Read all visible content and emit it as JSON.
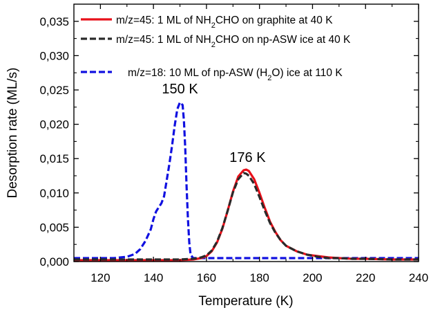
{
  "chart_data": {
    "type": "line",
    "xlabel": "Temperature (K)",
    "ylabel": "Desorption rate (ML/s)",
    "xlim": [
      110,
      240
    ],
    "ylim": [
      0,
      0.0375
    ],
    "xticks": [
      120,
      140,
      160,
      180,
      200,
      220,
      240
    ],
    "xtick_labels": [
      "120",
      "140",
      "160",
      "180",
      "200",
      "220",
      "240"
    ],
    "yticks": [
      0,
      0.005,
      0.01,
      0.015,
      0.02,
      0.025,
      0.03,
      0.035
    ],
    "ytick_labels": [
      "0,000",
      "0,005",
      "0,010",
      "0,015",
      "0,020",
      "0,025",
      "0,030",
      "0,035"
    ],
    "grid": false,
    "legend_position": "top",
    "series": [
      {
        "name_prefix": "m/z=45:  1 ML  of NH",
        "name_sub": "2",
        "name_suffix": "CHO on graphite at 40 K",
        "color": "#e8101a",
        "style": "solid",
        "x": [
          110,
          150,
          155,
          158,
          160,
          162,
          164,
          166,
          168,
          170,
          172,
          174,
          175,
          176,
          178,
          180,
          182,
          184,
          186,
          188,
          190,
          194,
          198,
          202,
          206,
          210,
          215,
          220,
          230,
          240
        ],
        "y": [
          0.0002,
          0.0002,
          0.0003,
          0.0005,
          0.0008,
          0.0015,
          0.0028,
          0.0048,
          0.0074,
          0.0102,
          0.0124,
          0.0133,
          0.0134,
          0.0132,
          0.012,
          0.01,
          0.0078,
          0.0058,
          0.0043,
          0.0031,
          0.0023,
          0.0015,
          0.001,
          0.0008,
          0.0006,
          0.0005,
          0.0004,
          0.0004,
          0.0003,
          0.0003
        ]
      },
      {
        "name_prefix": "m/z=45:  1 ML  of NH",
        "name_sub": "2",
        "name_suffix": "CHO on np-ASW ice at 40 K",
        "color": "#2a2a2a",
        "style": "dash",
        "x": [
          110,
          150,
          155,
          158,
          160,
          162,
          164,
          166,
          168,
          170,
          172,
          174,
          175,
          176,
          178,
          180,
          182,
          184,
          186,
          188,
          190,
          194,
          198,
          202,
          206,
          210,
          215,
          220,
          230,
          240
        ],
        "y": [
          0.0003,
          0.0003,
          0.0004,
          0.0006,
          0.0009,
          0.0016,
          0.0029,
          0.0049,
          0.0074,
          0.0101,
          0.012,
          0.0129,
          0.0128,
          0.0125,
          0.0113,
          0.0094,
          0.0074,
          0.0056,
          0.0042,
          0.0031,
          0.0023,
          0.0015,
          0.001,
          0.0007,
          0.0005,
          0.0005,
          0.0004,
          0.0004,
          0.0003,
          0.0003
        ]
      },
      {
        "name_prefix": "m/z=18:  10 ML  of np-ASW (H",
        "name_sub": "2",
        "name_suffix": "O) ice at 110 K",
        "color": "#1010e0",
        "style": "dash",
        "x": [
          110,
          125,
          130,
          133,
          135,
          137,
          139,
          140,
          141,
          142,
          143,
          144,
          145,
          146,
          147,
          148,
          149,
          150,
          151,
          151.5,
          152,
          152.5,
          153,
          153.5,
          154,
          155,
          160,
          180,
          200,
          220,
          240
        ],
        "y": [
          0.0005,
          0.0005,
          0.0007,
          0.0011,
          0.0018,
          0.003,
          0.0047,
          0.0062,
          0.0073,
          0.0079,
          0.0085,
          0.0095,
          0.0118,
          0.0142,
          0.0168,
          0.0198,
          0.0222,
          0.0232,
          0.0228,
          0.0205,
          0.0165,
          0.011,
          0.0062,
          0.0028,
          0.001,
          0.0005,
          0.0005,
          0.0005,
          0.0005,
          0.0005,
          0.0005
        ]
      }
    ],
    "annotations": [
      {
        "text": "150 K",
        "x": 150,
        "y": 0.0245
      },
      {
        "text": "176 K",
        "x": 175.5,
        "y": 0.0145
      }
    ]
  }
}
